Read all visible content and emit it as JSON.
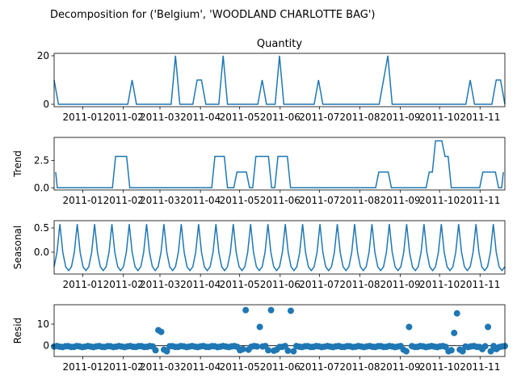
{
  "suptitle": "Decomposition for ('Belgium', 'WOODLAND CHARLOTTE BAG')",
  "line_color": "#1f77b4",
  "chart_data": [
    {
      "type": "line",
      "title": "Quantity",
      "ylabel": "",
      "yticks": [
        0,
        20
      ],
      "ylim": [
        -1,
        21
      ],
      "spikes": [
        [
          0,
          10
        ],
        [
          18,
          10
        ],
        [
          28,
          20
        ],
        [
          33,
          10
        ],
        [
          34,
          10
        ],
        [
          39,
          20
        ],
        [
          48,
          10
        ],
        [
          52,
          20
        ],
        [
          61,
          10
        ],
        [
          76,
          10
        ],
        [
          77,
          20
        ],
        [
          96,
          10
        ],
        [
          102,
          10
        ],
        [
          103,
          10
        ]
      ]
    },
    {
      "type": "line",
      "title": "",
      "ylabel": "Trend",
      "yticks": [
        0.0,
        2.5
      ],
      "ylim": [
        -0.2,
        4.6
      ],
      "points": [
        [
          0.5,
          1.43
        ],
        [
          1,
          0
        ],
        [
          18.5,
          0
        ],
        [
          19.5,
          2.86
        ],
        [
          23,
          2.86
        ],
        [
          24,
          0
        ],
        [
          50,
          0
        ],
        [
          51,
          2.86
        ],
        [
          54,
          2.86
        ],
        [
          55,
          0
        ],
        [
          57,
          0
        ],
        [
          58,
          1.43
        ],
        [
          61,
          1.43
        ],
        [
          62,
          0
        ],
        [
          63,
          0
        ],
        [
          64,
          2.86
        ],
        [
          68,
          2.86
        ],
        [
          69,
          0
        ],
        [
          70,
          0
        ],
        [
          71,
          2.86
        ],
        [
          74,
          2.86
        ],
        [
          75,
          0
        ],
        [
          102,
          0
        ],
        [
          103,
          1.43
        ],
        [
          106,
          1.43
        ],
        [
          107,
          0
        ],
        [
          118,
          0
        ],
        [
          119,
          1.43
        ],
        [
          120,
          1.43
        ],
        [
          121,
          4.29
        ],
        [
          123,
          4.29
        ],
        [
          124,
          2.86
        ],
        [
          125,
          2.86
        ],
        [
          126,
          0
        ],
        [
          135,
          0
        ],
        [
          136,
          1.43
        ],
        [
          140,
          1.43
        ],
        [
          141,
          0
        ],
        [
          142,
          0
        ],
        [
          142.5,
          1.43
        ]
      ]
    },
    {
      "type": "line",
      "title": "",
      "ylabel": "Seasonal",
      "yticks": [
        0.0,
        0.5
      ],
      "ylim": [
        -0.45,
        0.65
      ],
      "period": 6,
      "pattern": [
        -0.38,
        -0.3,
        0.0,
        0.58,
        0.0,
        -0.3
      ]
    },
    {
      "type": "scatter",
      "title": "",
      "ylabel": "Resid",
      "yticks": [
        0,
        10
      ],
      "ylim": [
        -5,
        19
      ],
      "outliers": [
        [
          37,
          7.2
        ],
        [
          38,
          6.4
        ],
        [
          68,
          16.5
        ],
        [
          73,
          8.7
        ],
        [
          77,
          16.5
        ],
        [
          84,
          16.2
        ],
        [
          126,
          8.7
        ],
        [
          142,
          5.9
        ],
        [
          143,
          15.0
        ],
        [
          154,
          8.7
        ]
      ],
      "dips": [
        36,
        39,
        40,
        66,
        67,
        69,
        76,
        78,
        79,
        83,
        85,
        124,
        125,
        140,
        141,
        144,
        145,
        152,
        155,
        157
      ]
    }
  ],
  "xaxis": {
    "tick_labels": [
      "2011-01",
      "2011-02",
      "2011-03",
      "2011-04",
      "2011-05",
      "2011-06",
      "2011-07",
      "2011-08",
      "2011-09",
      "2011-10",
      "2011-11"
    ],
    "tick_days": [
      31,
      62,
      90,
      121,
      151,
      182,
      212,
      243,
      274,
      304,
      335
    ],
    "first_day": 9,
    "last_day": 354
  }
}
